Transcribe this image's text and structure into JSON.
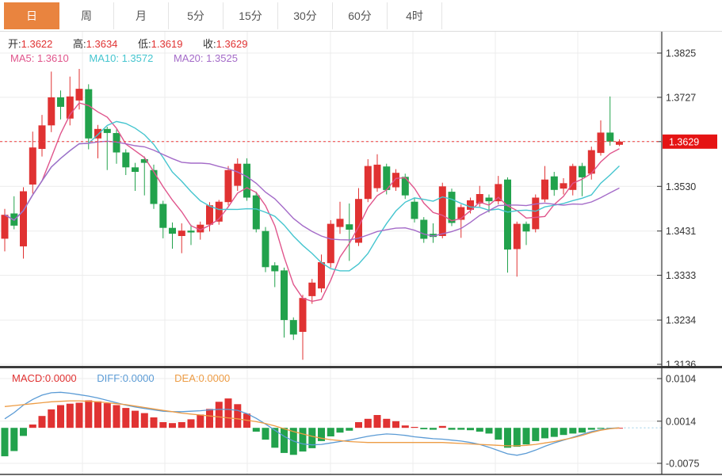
{
  "tabs": {
    "items": [
      {
        "label": "日",
        "active": true
      },
      {
        "label": "周",
        "active": false
      },
      {
        "label": "月",
        "active": false
      },
      {
        "label": "5分",
        "active": false
      },
      {
        "label": "15分",
        "active": false
      },
      {
        "label": "30分",
        "active": false
      },
      {
        "label": "60分",
        "active": false
      },
      {
        "label": "4时",
        "active": false
      }
    ]
  },
  "ohlc": {
    "open_label": "开:",
    "open": "1.3622",
    "high_label": "高:",
    "high": "1.3634",
    "low_label": "低:",
    "low": "1.3619",
    "close_label": "收:",
    "close": "1.3629"
  },
  "ma_readout": {
    "ma5_label": "MA5:",
    "ma5": "1.3610",
    "ma10_label": "MA10:",
    "ma10": "1.3572",
    "ma20_label": "MA20:",
    "ma20": "1.3525"
  },
  "macd_readout": {
    "macd_label": "MACD:",
    "macd": "0.0000",
    "diff_label": "DIFF:",
    "diff": "0.0000",
    "dea_label": "DEA:",
    "dea": "0.0000"
  },
  "colors": {
    "up": "#e03232",
    "down": "#22a24c",
    "ma5": "#e0558c",
    "ma10": "#45c5cf",
    "ma20": "#a46bc8",
    "diff": "#5b9bd5",
    "dea": "#ed9c45",
    "last_price_line": "#f03c3c",
    "price_tag_bg": "#e51414",
    "active_tab": "#e9843f",
    "grid": "#ececec",
    "axis": "#333333",
    "current_macd_dash": "#a6d4ea"
  },
  "chart_data": {
    "type": "candlestick",
    "panels": [
      "price",
      "macd"
    ],
    "x_count": 67,
    "title": "",
    "legend_position": "top-left-overlay",
    "grid": true,
    "y_axis": {
      "max": 1.3825,
      "min": 1.3136,
      "ticks": [
        {
          "label": "1.3825",
          "value": 1.3825
        },
        {
          "label": "1.3727",
          "value": 1.3727
        },
        {
          "label": "1.3629",
          "value": 1.3629
        },
        {
          "label": "1.3530",
          "value": 1.353
        },
        {
          "label": "1.3431",
          "value": 1.3431
        },
        {
          "label": "1.3333",
          "value": 1.3333
        },
        {
          "label": "1.3234",
          "value": 1.3234
        },
        {
          "label": "1.3136",
          "value": 1.3136
        }
      ]
    },
    "last_price": {
      "label": "1.3629",
      "value": 1.3629
    },
    "ma_periods": [
      5,
      10,
      20
    ],
    "candles": [
      [
        1.3414,
        1.348,
        1.3386,
        1.3467
      ],
      [
        1.347,
        1.3508,
        1.3435,
        1.3443
      ],
      [
        1.3397,
        1.3528,
        1.337,
        1.3519
      ],
      [
        1.3534,
        1.3651,
        1.3514,
        1.3616
      ],
      [
        1.3613,
        1.3688,
        1.3596,
        1.3665
      ],
      [
        1.3665,
        1.3784,
        1.365,
        1.3727
      ],
      [
        1.3727,
        1.3742,
        1.3678,
        1.3706
      ],
      [
        1.368,
        1.3773,
        1.3665,
        1.3729
      ],
      [
        1.372,
        1.379,
        1.37,
        1.3746
      ],
      [
        1.3745,
        1.3756,
        1.3612,
        1.3636
      ],
      [
        1.3636,
        1.3666,
        1.3592,
        1.3657
      ],
      [
        1.3657,
        1.3662,
        1.3566,
        1.3648
      ],
      [
        1.3648,
        1.3656,
        1.358,
        1.3605
      ],
      [
        1.3605,
        1.3612,
        1.3555,
        1.3572
      ],
      [
        1.3572,
        1.3582,
        1.352,
        1.3562
      ],
      [
        1.359,
        1.3596,
        1.351,
        1.3582
      ],
      [
        1.3566,
        1.3578,
        1.348,
        1.3491
      ],
      [
        1.3491,
        1.3498,
        1.3415,
        1.3438
      ],
      [
        1.3438,
        1.345,
        1.3392,
        1.3425
      ],
      [
        1.342,
        1.3448,
        1.3382,
        1.3432
      ],
      [
        1.3432,
        1.3445,
        1.34,
        1.3428
      ],
      [
        1.3428,
        1.3452,
        1.3412,
        1.3445
      ],
      [
        1.3445,
        1.3495,
        1.343,
        1.3488
      ],
      [
        1.3452,
        1.35,
        1.3445,
        1.3496
      ],
      [
        1.3495,
        1.3575,
        1.3488,
        1.3566
      ],
      [
        1.3531,
        1.3592,
        1.352,
        1.358
      ],
      [
        1.358,
        1.3592,
        1.3498,
        1.3505
      ],
      [
        1.351,
        1.3518,
        1.3428,
        1.3435
      ],
      [
        1.3431,
        1.344,
        1.334,
        1.3351
      ],
      [
        1.3355,
        1.3362,
        1.3307,
        1.3342
      ],
      [
        1.3344,
        1.335,
        1.3195,
        1.3234
      ],
      [
        1.3234,
        1.324,
        1.319,
        1.3202
      ],
      [
        1.3208,
        1.329,
        1.3146,
        1.3283
      ],
      [
        1.3287,
        1.3325,
        1.327,
        1.3317
      ],
      [
        1.3304,
        1.3379,
        1.3295,
        1.3362
      ],
      [
        1.336,
        1.3455,
        1.335,
        1.3447
      ],
      [
        1.344,
        1.3496,
        1.3425,
        1.3458
      ],
      [
        1.3446,
        1.3492,
        1.3365,
        1.3434
      ],
      [
        1.3405,
        1.3526,
        1.3398,
        1.3502
      ],
      [
        1.3502,
        1.359,
        1.3495,
        1.3575
      ],
      [
        1.3526,
        1.3601,
        1.3518,
        1.3578
      ],
      [
        1.3574,
        1.358,
        1.3512,
        1.3522
      ],
      [
        1.3528,
        1.3568,
        1.352,
        1.356
      ],
      [
        1.3551,
        1.3558,
        1.3502,
        1.351
      ],
      [
        1.3496,
        1.3505,
        1.345,
        1.3458
      ],
      [
        1.3456,
        1.3462,
        1.3405,
        1.3414
      ],
      [
        1.3425,
        1.3448,
        1.3405,
        1.3418
      ],
      [
        1.342,
        1.3538,
        1.3415,
        1.353
      ],
      [
        1.3518,
        1.3525,
        1.3442,
        1.3449
      ],
      [
        1.3456,
        1.349,
        1.3416,
        1.3484
      ],
      [
        1.3478,
        1.3505,
        1.347,
        1.3499
      ],
      [
        1.3492,
        1.3531,
        1.3485,
        1.3513
      ],
      [
        1.3505,
        1.3512,
        1.3472,
        1.3497
      ],
      [
        1.3497,
        1.3553,
        1.349,
        1.3535
      ],
      [
        1.3545,
        1.355,
        1.3339,
        1.339
      ],
      [
        1.3391,
        1.3452,
        1.333,
        1.3447
      ],
      [
        1.3447,
        1.3452,
        1.34,
        1.343
      ],
      [
        1.3435,
        1.3512,
        1.3428,
        1.3505
      ],
      [
        1.3501,
        1.3575,
        1.3495,
        1.3545
      ],
      [
        1.3552,
        1.3562,
        1.3509,
        1.3522
      ],
      [
        1.3525,
        1.3548,
        1.3512,
        1.3537
      ],
      [
        1.3522,
        1.358,
        1.351,
        1.3575
      ],
      [
        1.3575,
        1.3582,
        1.3508,
        1.355
      ],
      [
        1.3558,
        1.3618,
        1.3545,
        1.361
      ],
      [
        1.3604,
        1.3676,
        1.3598,
        1.3649
      ],
      [
        1.3649,
        1.3729,
        1.362,
        1.3629
      ],
      [
        1.3622,
        1.3634,
        1.3619,
        1.3629
      ]
    ],
    "macd": {
      "axis": {
        "max": 0.0104,
        "min": -0.0075,
        "ticks": [
          {
            "label": "0.0104",
            "value": 0.0104
          },
          {
            "label": "0.0014",
            "value": 0.0014
          },
          {
            "label": "-0.0075",
            "value": -0.0075
          }
        ]
      },
      "hist": [
        -0.006,
        -0.0049,
        -0.0017,
        0.0007,
        0.0025,
        0.0039,
        0.0048,
        0.0051,
        0.0053,
        0.0058,
        0.0056,
        0.0052,
        0.0048,
        0.0042,
        0.0036,
        0.0031,
        0.0022,
        0.0012,
        0.001,
        0.0012,
        0.0018,
        0.0028,
        0.004,
        0.0055,
        0.0062,
        0.005,
        0.003,
        -0.0008,
        -0.0025,
        -0.0042,
        -0.0053,
        -0.0057,
        -0.005,
        -0.0043,
        -0.0028,
        -0.0018,
        -0.001,
        -0.0006,
        0.0012,
        0.0019,
        0.0027,
        0.0019,
        0.0014,
        0.0005,
        0.0002,
        -0.0003,
        -0.0004,
        0.0004,
        -0.0004,
        -0.0004,
        -0.0005,
        -0.0008,
        -0.0012,
        -0.0025,
        -0.0042,
        -0.004,
        -0.0035,
        -0.0028,
        -0.0022,
        -0.0019,
        -0.0015,
        -0.0012,
        -0.001,
        -0.0004,
        -0.0002,
        -0.0001,
        0.0
      ],
      "diff": [
        0.0019,
        0.0032,
        0.0048,
        0.006,
        0.0069,
        0.0074,
        0.0075,
        0.0073,
        0.007,
        0.0067,
        0.0063,
        0.0058,
        0.0053,
        0.0048,
        0.0044,
        0.0041,
        0.0038,
        0.0035,
        0.0034,
        0.0034,
        0.0035,
        0.0036,
        0.0038,
        0.0039,
        0.0039,
        0.0037,
        0.003,
        0.002,
        0.0008,
        -0.0005,
        -0.0018,
        -0.0028,
        -0.0034,
        -0.0036,
        -0.0035,
        -0.0032,
        -0.0029,
        -0.0026,
        -0.0022,
        -0.0018,
        -0.0015,
        -0.0013,
        -0.0014,
        -0.0016,
        -0.0019,
        -0.0021,
        -0.0023,
        -0.0024,
        -0.0026,
        -0.0028,
        -0.0031,
        -0.0035,
        -0.0041,
        -0.0048,
        -0.0055,
        -0.0058,
        -0.0054,
        -0.0047,
        -0.0039,
        -0.0032,
        -0.0026,
        -0.002,
        -0.0014,
        -0.0008,
        -0.0004,
        -0.0001,
        0.0
      ],
      "dea": [
        0.0045,
        0.0047,
        0.0049,
        0.0051,
        0.0053,
        0.0055,
        0.0056,
        0.0057,
        0.0057,
        0.0056,
        0.0055,
        0.0053,
        0.0051,
        0.0049,
        0.0046,
        0.0043,
        0.004,
        0.0037,
        0.0034,
        0.0031,
        0.0029,
        0.0027,
        0.0025,
        0.0023,
        0.0021,
        0.0019,
        0.0016,
        0.0013,
        0.0009,
        0.0004,
        -0.0002,
        -0.0008,
        -0.0013,
        -0.0018,
        -0.0022,
        -0.0025,
        -0.0027,
        -0.0029,
        -0.003,
        -0.0031,
        -0.0031,
        -0.0031,
        -0.0031,
        -0.0031,
        -0.0031,
        -0.0031,
        -0.0031,
        -0.0031,
        -0.0032,
        -0.0033,
        -0.0034,
        -0.0035,
        -0.0036,
        -0.0037,
        -0.0038,
        -0.0038,
        -0.0037,
        -0.0035,
        -0.0032,
        -0.0029,
        -0.0025,
        -0.0021,
        -0.0016,
        -0.001,
        -0.0005,
        -0.0002,
        0.0
      ]
    }
  }
}
